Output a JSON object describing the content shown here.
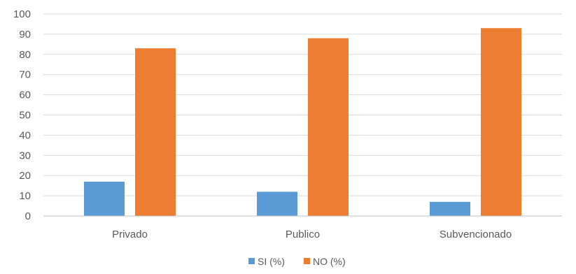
{
  "chart_data": {
    "type": "bar",
    "categories": [
      "Privado",
      "Publico",
      "Subvencionado"
    ],
    "series": [
      {
        "name": "SI (%)",
        "values": [
          17,
          12,
          7
        ],
        "color": "#5B9BD5"
      },
      {
        "name": "NO (%)",
        "values": [
          83,
          88,
          93
        ],
        "color": "#ED7D31"
      }
    ],
    "y_ticks": [
      "0",
      "10",
      "20",
      "30",
      "40",
      "50",
      "60",
      "70",
      "80",
      "90",
      "100"
    ],
    "ylim": [
      0,
      100
    ],
    "grid": true,
    "legend_position": "bottom",
    "title": "",
    "xlabel": "",
    "ylabel": ""
  }
}
